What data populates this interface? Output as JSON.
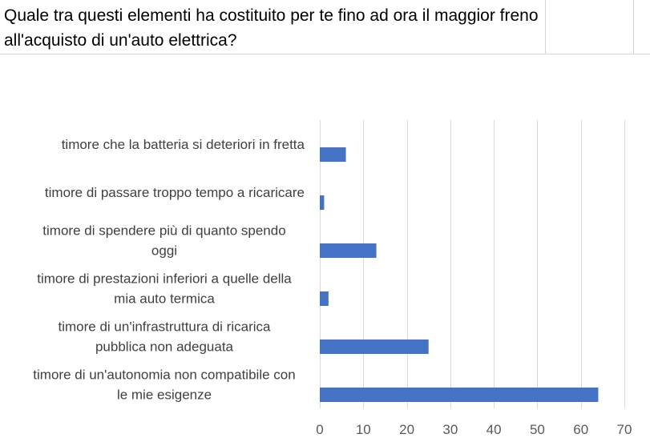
{
  "question": {
    "text": "Quale tra questi elementi ha costituito per te fino ad ora il maggior freno all'acquisto di un'auto elettrica?"
  },
  "colors": {
    "bar": "#4472c4",
    "grid": "#d9d9d9",
    "cell_border": "#d4d4d4"
  },
  "chart_data": {
    "type": "bar",
    "orientation": "horizontal",
    "title": "",
    "xlabel": "",
    "ylabel": "",
    "categories": [
      "timore che la batteria si deteriori in fretta",
      "timore di passare troppo tempo a ricaricare",
      "timore di spendere più di quanto spendo oggi",
      "timore di prestazioni inferiori a quelle della mia auto termica",
      "timore di un'infrastruttura di ricarica pubblica non adeguata",
      "timore di un'autonomia non compatibile con le mie esigenze"
    ],
    "category_label_lines": [
      [
        "timore che la batteria si deteriori in fretta"
      ],
      [
        "timore di passare troppo tempo a ricaricare"
      ],
      [
        "timore di spendere più di quanto spendo",
        "oggi"
      ],
      [
        "timore di prestazioni inferiori a quelle della",
        "mia auto termica"
      ],
      [
        "timore di un'infrastruttura di ricarica",
        "pubblica non adeguata"
      ],
      [
        "timore di un'autonomia non compatibile con",
        "le mie esigenze"
      ]
    ],
    "values": [
      6,
      1,
      13,
      2,
      25,
      64
    ],
    "xlim": [
      0,
      70
    ],
    "xticks": [
      0,
      10,
      20,
      30,
      40,
      50,
      60,
      70
    ],
    "grid": "vertical",
    "legend": "none"
  }
}
